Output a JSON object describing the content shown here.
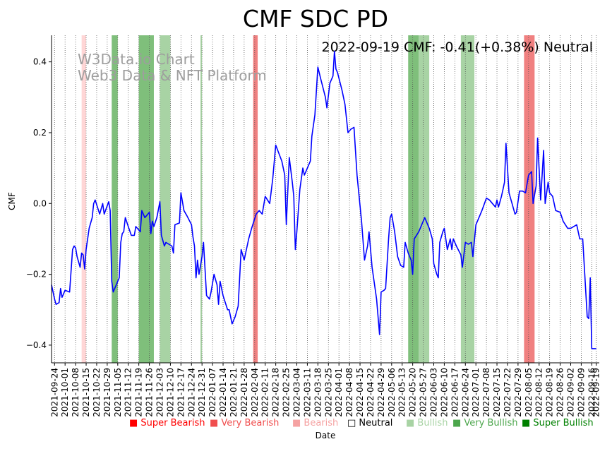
{
  "chart_data": {
    "type": "line",
    "title": "CMF SDC PD",
    "xlabel": "Date",
    "ylabel": "CMF",
    "annotation": "2022-09-19 CMF: -0.41(+0.38%) Neutral",
    "watermark_line1": "W3Data.io Chart",
    "watermark_line2": "Web3 Data & NFT Platform",
    "x_start": "2021-09-22",
    "x_end": "2022-09-21",
    "ylim": [
      -0.45,
      0.475
    ],
    "yticks": [
      -0.4,
      -0.2,
      0.0,
      0.2,
      0.4
    ],
    "ytick_labels": [
      "−0.4",
      "−0.2",
      "0.0",
      "0.2",
      "0.4"
    ],
    "line_color": "#0000ff",
    "xtick_labels": [
      "2021-09-24",
      "2021-10-01",
      "2021-10-08",
      "2021-10-15",
      "2021-10-22",
      "2021-10-29",
      "2021-11-05",
      "2021-11-12",
      "2021-11-19",
      "2021-11-26",
      "2021-12-03",
      "2021-12-10",
      "2021-12-17",
      "2021-12-24",
      "2021-12-31",
      "2022-01-07",
      "2022-01-14",
      "2022-01-21",
      "2022-01-28",
      "2022-02-04",
      "2022-02-11",
      "2022-02-18",
      "2022-02-25",
      "2022-03-04",
      "2022-03-11",
      "2022-03-18",
      "2022-03-25",
      "2022-04-01",
      "2022-04-08",
      "2022-04-15",
      "2022-04-22",
      "2022-04-29",
      "2022-05-06",
      "2022-05-13",
      "2022-05-20",
      "2022-05-27",
      "2022-06-03",
      "2022-06-10",
      "2022-06-17",
      "2022-06-24",
      "2022-07-01",
      "2022-07-08",
      "2022-07-15",
      "2022-07-22",
      "2022-07-29",
      "2022-08-05",
      "2022-08-12",
      "2022-08-19",
      "2022-08-26",
      "2022-09-02",
      "2022-09-09",
      "2022-09-16",
      "2022-09-19"
    ],
    "bands": [
      {
        "start": "2021-10-12",
        "end": "2021-10-15",
        "category": "Bearish"
      },
      {
        "start": "2021-11-01",
        "end": "2021-11-05",
        "category": "Very Bullish"
      },
      {
        "start": "2021-11-19",
        "end": "2021-11-29",
        "category": "Very Bullish"
      },
      {
        "start": "2021-12-03",
        "end": "2021-12-10",
        "category": "Bullish"
      },
      {
        "start": "2021-12-30",
        "end": "2021-12-31",
        "category": "Bullish"
      },
      {
        "start": "2022-02-03",
        "end": "2022-02-06",
        "category": "Very Bearish"
      },
      {
        "start": "2022-05-17",
        "end": "2022-05-24",
        "category": "Very Bullish"
      },
      {
        "start": "2022-05-24",
        "end": "2022-05-31",
        "category": "Bullish"
      },
      {
        "start": "2022-06-21",
        "end": "2022-06-30",
        "category": "Bullish"
      },
      {
        "start": "2022-08-02",
        "end": "2022-08-09",
        "category": "Very Bearish"
      }
    ],
    "series": [
      {
        "name": "CMF",
        "points": [
          [
            "2021-09-22",
            -0.23
          ],
          [
            "2021-09-24",
            -0.27
          ],
          [
            "2021-09-25",
            -0.285
          ],
          [
            "2021-09-27",
            -0.28
          ],
          [
            "2021-09-28",
            -0.24
          ],
          [
            "2021-09-29",
            -0.265
          ],
          [
            "2021-10-01",
            -0.245
          ],
          [
            "2021-10-04",
            -0.25
          ],
          [
            "2021-10-06",
            -0.13
          ],
          [
            "2021-10-07",
            -0.12
          ],
          [
            "2021-10-08",
            -0.125
          ],
          [
            "2021-10-09",
            -0.15
          ],
          [
            "2021-10-11",
            -0.18
          ],
          [
            "2021-10-12",
            -0.14
          ],
          [
            "2021-10-13",
            -0.145
          ],
          [
            "2021-10-14",
            -0.185
          ],
          [
            "2021-10-15",
            -0.13
          ],
          [
            "2021-10-17",
            -0.07
          ],
          [
            "2021-10-19",
            -0.04
          ],
          [
            "2021-10-20",
            0.0
          ],
          [
            "2021-10-21",
            0.01
          ],
          [
            "2021-10-24",
            -0.03
          ],
          [
            "2021-10-26",
            0.0
          ],
          [
            "2021-10-27",
            -0.03
          ],
          [
            "2021-10-30",
            0.005
          ],
          [
            "2021-10-31",
            -0.02
          ],
          [
            "2021-11-01",
            -0.22
          ],
          [
            "2021-11-02",
            -0.25
          ],
          [
            "2021-11-06",
            -0.21
          ],
          [
            "2021-11-07",
            -0.11
          ],
          [
            "2021-11-08",
            -0.085
          ],
          [
            "2021-11-09",
            -0.08
          ],
          [
            "2021-11-10",
            -0.04
          ],
          [
            "2021-11-12",
            -0.065
          ],
          [
            "2021-11-14",
            -0.09
          ],
          [
            "2021-11-16",
            -0.09
          ],
          [
            "2021-11-17",
            -0.065
          ],
          [
            "2021-11-20",
            -0.08
          ],
          [
            "2021-11-21",
            -0.02
          ],
          [
            "2021-11-23",
            -0.04
          ],
          [
            "2021-11-26",
            -0.025
          ],
          [
            "2021-11-27",
            -0.085
          ],
          [
            "2021-11-28",
            -0.05
          ],
          [
            "2021-11-29",
            -0.065
          ],
          [
            "2021-12-01",
            -0.04
          ],
          [
            "2021-12-03",
            0.005
          ],
          [
            "2021-12-04",
            -0.09
          ],
          [
            "2021-12-06",
            -0.12
          ],
          [
            "2021-12-07",
            -0.11
          ],
          [
            "2021-12-09",
            -0.115
          ],
          [
            "2021-12-11",
            -0.12
          ],
          [
            "2021-12-12",
            -0.14
          ],
          [
            "2021-12-13",
            -0.06
          ],
          [
            "2021-12-16",
            -0.055
          ],
          [
            "2021-12-17",
            0.03
          ],
          [
            "2021-12-19",
            -0.02
          ],
          [
            "2021-12-21",
            -0.035
          ],
          [
            "2021-12-24",
            -0.06
          ],
          [
            "2021-12-25",
            -0.095
          ],
          [
            "2021-12-26",
            -0.12
          ],
          [
            "2021-12-27",
            -0.21
          ],
          [
            "2021-12-28",
            -0.16
          ],
          [
            "2021-12-29",
            -0.2
          ],
          [
            "2021-12-31",
            -0.15
          ],
          [
            "2022-01-01",
            -0.11
          ],
          [
            "2022-01-03",
            -0.26
          ],
          [
            "2022-01-05",
            -0.27
          ],
          [
            "2022-01-06",
            -0.25
          ],
          [
            "2022-01-08",
            -0.2
          ],
          [
            "2022-01-10",
            -0.23
          ],
          [
            "2022-01-11",
            -0.285
          ],
          [
            "2022-01-12",
            -0.22
          ],
          [
            "2022-01-14",
            -0.26
          ],
          [
            "2022-01-17",
            -0.3
          ],
          [
            "2022-01-18",
            -0.3
          ],
          [
            "2022-01-20",
            -0.34
          ],
          [
            "2022-01-22",
            -0.32
          ],
          [
            "2022-01-24",
            -0.29
          ],
          [
            "2022-01-26",
            -0.13
          ],
          [
            "2022-01-28",
            -0.16
          ],
          [
            "2022-01-29",
            -0.14
          ],
          [
            "2022-01-31",
            -0.1
          ],
          [
            "2022-02-02",
            -0.07
          ],
          [
            "2022-02-05",
            -0.03
          ],
          [
            "2022-02-07",
            -0.02
          ],
          [
            "2022-02-09",
            -0.03
          ],
          [
            "2022-02-11",
            0.02
          ],
          [
            "2022-02-14",
            0.0
          ],
          [
            "2022-02-16",
            0.07
          ],
          [
            "2022-02-18",
            0.165
          ],
          [
            "2022-02-22",
            0.12
          ],
          [
            "2022-02-24",
            0.08
          ],
          [
            "2022-02-25",
            -0.06
          ],
          [
            "2022-02-27",
            0.13
          ],
          [
            "2022-03-01",
            0.06
          ],
          [
            "2022-03-02",
            0.02
          ],
          [
            "2022-03-03",
            -0.13
          ],
          [
            "2022-03-04",
            -0.08
          ],
          [
            "2022-03-06",
            0.04
          ],
          [
            "2022-03-08",
            0.1
          ],
          [
            "2022-03-09",
            0.08
          ],
          [
            "2022-03-13",
            0.12
          ],
          [
            "2022-03-14",
            0.19
          ],
          [
            "2022-03-16",
            0.25
          ],
          [
            "2022-03-18",
            0.385
          ],
          [
            "2022-03-20",
            0.35
          ],
          [
            "2022-03-23",
            0.3
          ],
          [
            "2022-03-24",
            0.27
          ],
          [
            "2022-03-26",
            0.34
          ],
          [
            "2022-03-28",
            0.36
          ],
          [
            "2022-03-29",
            0.43
          ],
          [
            "2022-03-30",
            0.38
          ],
          [
            "2022-03-31",
            0.37
          ],
          [
            "2022-04-03",
            0.32
          ],
          [
            "2022-04-05",
            0.28
          ],
          [
            "2022-04-07",
            0.2
          ],
          [
            "2022-04-09",
            0.21
          ],
          [
            "2022-04-11",
            0.215
          ],
          [
            "2022-04-13",
            0.08
          ],
          [
            "2022-04-16",
            -0.05
          ],
          [
            "2022-04-18",
            -0.16
          ],
          [
            "2022-04-20",
            -0.12
          ],
          [
            "2022-04-21",
            -0.08
          ],
          [
            "2022-04-23",
            -0.18
          ],
          [
            "2022-04-26",
            -0.27
          ],
          [
            "2022-04-28",
            -0.37
          ],
          [
            "2022-04-29",
            -0.25
          ],
          [
            "2022-05-01",
            -0.245
          ],
          [
            "2022-05-02",
            -0.24
          ],
          [
            "2022-05-04",
            -0.1
          ],
          [
            "2022-05-05",
            -0.04
          ],
          [
            "2022-05-06",
            -0.03
          ],
          [
            "2022-05-08",
            -0.08
          ],
          [
            "2022-05-10",
            -0.15
          ],
          [
            "2022-05-12",
            -0.175
          ],
          [
            "2022-05-14",
            -0.18
          ],
          [
            "2022-05-15",
            -0.11
          ],
          [
            "2022-05-17",
            -0.14
          ],
          [
            "2022-05-19",
            -0.16
          ],
          [
            "2022-05-20",
            -0.2
          ],
          [
            "2022-05-21",
            -0.1
          ],
          [
            "2022-05-24",
            -0.08
          ],
          [
            "2022-05-26",
            -0.06
          ],
          [
            "2022-05-28",
            -0.04
          ],
          [
            "2022-05-31",
            -0.07
          ],
          [
            "2022-06-02",
            -0.1
          ],
          [
            "2022-06-03",
            -0.17
          ],
          [
            "2022-06-05",
            -0.2
          ],
          [
            "2022-06-06",
            -0.21
          ],
          [
            "2022-06-07",
            -0.11
          ],
          [
            "2022-06-09",
            -0.08
          ],
          [
            "2022-06-10",
            -0.07
          ],
          [
            "2022-06-12",
            -0.13
          ],
          [
            "2022-06-14",
            -0.1
          ],
          [
            "2022-06-15",
            -0.13
          ],
          [
            "2022-06-16",
            -0.1
          ],
          [
            "2022-06-18",
            -0.12
          ],
          [
            "2022-06-21",
            -0.145
          ],
          [
            "2022-06-22",
            -0.18
          ],
          [
            "2022-06-24",
            -0.11
          ],
          [
            "2022-06-26",
            -0.115
          ],
          [
            "2022-06-28",
            -0.11
          ],
          [
            "2022-06-29",
            -0.15
          ],
          [
            "2022-07-01",
            -0.06
          ],
          [
            "2022-07-03",
            -0.04
          ],
          [
            "2022-07-05",
            -0.02
          ],
          [
            "2022-07-08",
            0.015
          ],
          [
            "2022-07-10",
            0.01
          ],
          [
            "2022-07-12",
            0.0
          ],
          [
            "2022-07-14",
            -0.01
          ],
          [
            "2022-07-15",
            0.01
          ],
          [
            "2022-07-16",
            -0.01
          ],
          [
            "2022-07-18",
            0.02
          ],
          [
            "2022-07-19",
            0.04
          ],
          [
            "2022-07-20",
            0.06
          ],
          [
            "2022-07-21",
            0.17
          ],
          [
            "2022-07-23",
            0.03
          ],
          [
            "2022-07-25",
            0.0
          ],
          [
            "2022-07-27",
            -0.03
          ],
          [
            "2022-07-28",
            -0.025
          ],
          [
            "2022-07-30",
            0.035
          ],
          [
            "2022-08-01",
            0.035
          ],
          [
            "2022-08-03",
            0.03
          ],
          [
            "2022-08-05",
            0.08
          ],
          [
            "2022-08-07",
            0.09
          ],
          [
            "2022-08-08",
            0.0
          ],
          [
            "2022-08-10",
            0.05
          ],
          [
            "2022-08-11",
            0.185
          ],
          [
            "2022-08-13",
            0.01
          ],
          [
            "2022-08-15",
            0.15
          ],
          [
            "2022-08-16",
            0.0
          ],
          [
            "2022-08-18",
            0.06
          ],
          [
            "2022-08-19",
            0.03
          ],
          [
            "2022-08-21",
            0.02
          ],
          [
            "2022-08-23",
            -0.02
          ],
          [
            "2022-08-26",
            -0.025
          ],
          [
            "2022-08-28",
            -0.05
          ],
          [
            "2022-08-31",
            -0.07
          ],
          [
            "2022-09-02",
            -0.07
          ],
          [
            "2022-09-06",
            -0.06
          ],
          [
            "2022-09-08",
            -0.1
          ],
          [
            "2022-09-10",
            -0.1
          ],
          [
            "2022-09-13",
            -0.32
          ],
          [
            "2022-09-14",
            -0.325
          ],
          [
            "2022-09-15",
            -0.21
          ],
          [
            "2022-09-16",
            -0.41
          ],
          [
            "2022-09-19",
            -0.41
          ]
        ]
      }
    ]
  },
  "legend": {
    "items": [
      {
        "key": "super-bearish",
        "label": "Super Bearish",
        "color": "#ff0000",
        "mark": "■"
      },
      {
        "key": "very-bearish",
        "label": "Very Bearish",
        "color": "#f04e4e",
        "mark": "■"
      },
      {
        "key": "bearish",
        "label": "Bearish",
        "color": "#f5a2a2",
        "mark": "■"
      },
      {
        "key": "neutral",
        "label": "Neutral",
        "color": "#000000",
        "mark": "□"
      },
      {
        "key": "bullish",
        "label": "Bullish",
        "color": "#a8d3a4",
        "mark": "■"
      },
      {
        "key": "very-bullish",
        "label": "Very Bullish",
        "color": "#4ca64c",
        "mark": "■"
      },
      {
        "key": "super-bullish",
        "label": "Super Bullish",
        "color": "#008000",
        "mark": "■"
      }
    ]
  },
  "band_colors": {
    "Super Bearish": "#ff0000",
    "Very Bearish": "#f08080",
    "Bearish": "#ffd6d6",
    "Bullish": "#a8d3a4",
    "Very Bullish": "#7fbf7b",
    "Super Bullish": "#008000"
  }
}
